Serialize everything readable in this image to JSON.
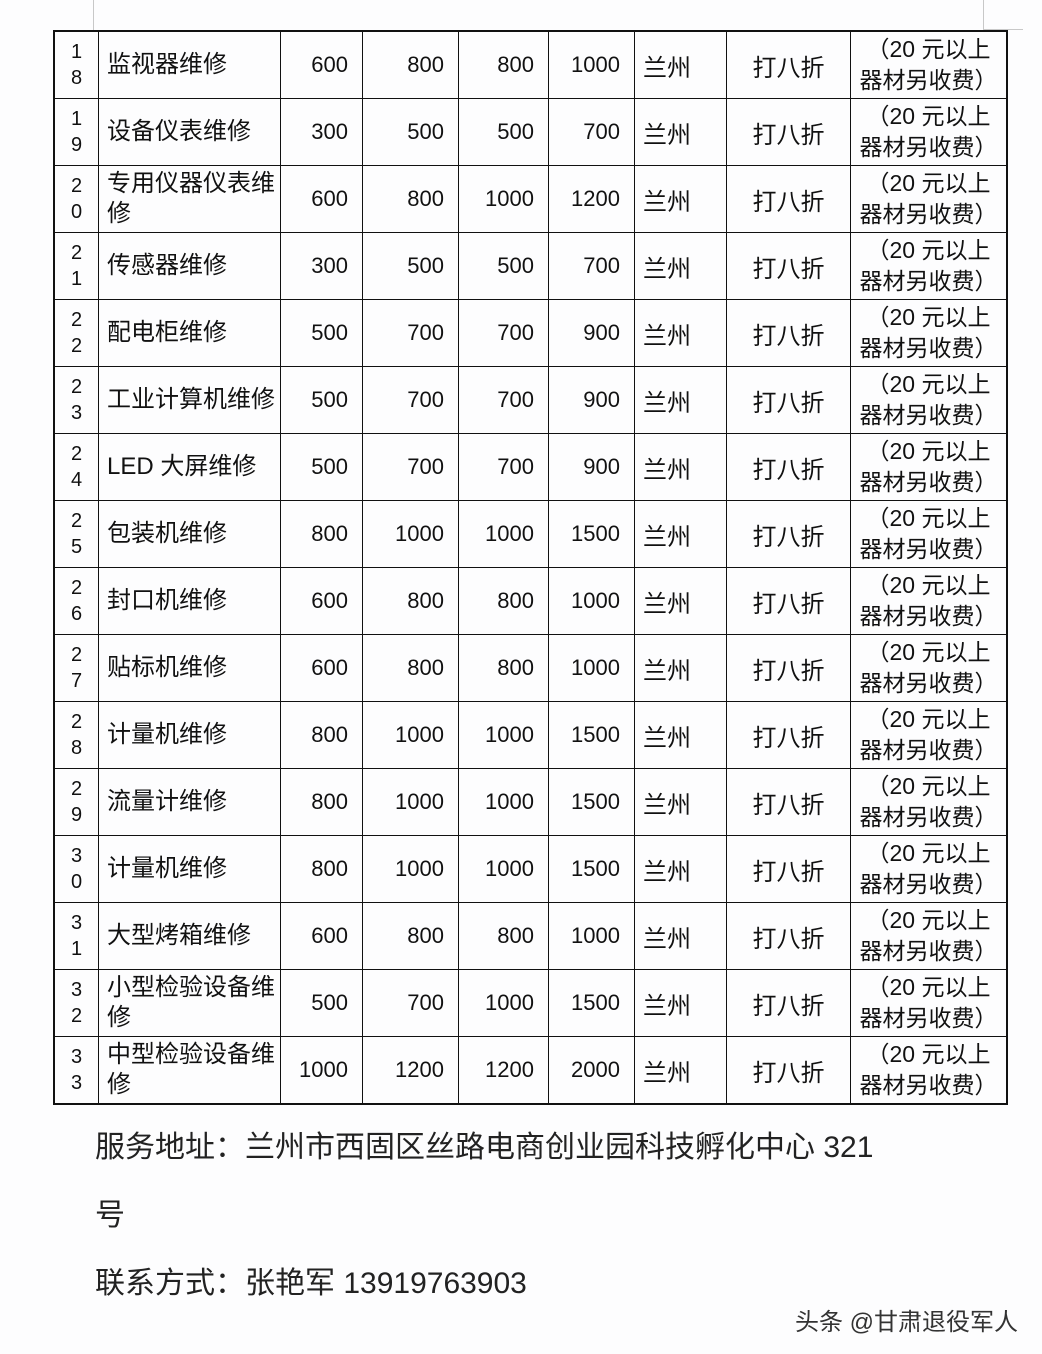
{
  "table": {
    "rows": [
      {
        "no": "1\n8",
        "name": "监视器维修",
        "p1": "600",
        "p2": "800",
        "p3": "800",
        "p4": "1000",
        "city": "兰州",
        "discount": "打八折",
        "note_line1": "（20 元以上",
        "note_line2": "器材另收费）"
      },
      {
        "no": "1\n9",
        "name": "设备仪表维修",
        "p1": "300",
        "p2": "500",
        "p3": "500",
        "p4": "700",
        "city": "兰州",
        "discount": "打八折",
        "note_line1": "（20 元以上",
        "note_line2": "器材另收费）"
      },
      {
        "no": "2\n0",
        "name": "专用仪器仪表维修",
        "p1": "600",
        "p2": "800",
        "p3": "1000",
        "p4": "1200",
        "city": "兰州",
        "discount": "打八折",
        "note_line1": "（20 元以上",
        "note_line2": "器材另收费）"
      },
      {
        "no": "2\n1",
        "name": "传感器维修",
        "p1": "300",
        "p2": "500",
        "p3": "500",
        "p4": "700",
        "city": "兰州",
        "discount": "打八折",
        "note_line1": "（20 元以上",
        "note_line2": "器材另收费）"
      },
      {
        "no": "2\n2",
        "name": "配电柜维修",
        "p1": "500",
        "p2": "700",
        "p3": "700",
        "p4": "900",
        "city": "兰州",
        "discount": "打八折",
        "note_line1": "（20 元以上",
        "note_line2": "器材另收费）"
      },
      {
        "no": "2\n3",
        "name": "工业计算机维修",
        "p1": "500",
        "p2": "700",
        "p3": "700",
        "p4": "900",
        "city": "兰州",
        "discount": "打八折",
        "note_line1": "（20 元以上",
        "note_line2": "器材另收费）"
      },
      {
        "no": "2\n4",
        "name": "LED 大屏维修",
        "p1": "500",
        "p2": "700",
        "p3": "700",
        "p4": "900",
        "city": "兰州",
        "discount": "打八折",
        "note_line1": "（20 元以上",
        "note_line2": "器材另收费）"
      },
      {
        "no": "2\n5",
        "name": "包装机维修",
        "p1": "800",
        "p2": "1000",
        "p3": "1000",
        "p4": "1500",
        "city": "兰州",
        "discount": "打八折",
        "note_line1": "（20 元以上",
        "note_line2": "器材另收费）"
      },
      {
        "no": "2\n6",
        "name": "封口机维修",
        "p1": "600",
        "p2": "800",
        "p3": "800",
        "p4": "1000",
        "city": "兰州",
        "discount": "打八折",
        "note_line1": "（20 元以上",
        "note_line2": "器材另收费）"
      },
      {
        "no": "2\n7",
        "name": "贴标机维修",
        "p1": "600",
        "p2": "800",
        "p3": "800",
        "p4": "1000",
        "city": "兰州",
        "discount": "打八折",
        "note_line1": "（20 元以上",
        "note_line2": "器材另收费）"
      },
      {
        "no": "2\n8",
        "name": "计量机维修",
        "p1": "800",
        "p2": "1000",
        "p3": "1000",
        "p4": "1500",
        "city": "兰州",
        "discount": "打八折",
        "note_line1": "（20 元以上",
        "note_line2": "器材另收费）"
      },
      {
        "no": "2\n9",
        "name": "流量计维修",
        "p1": "800",
        "p2": "1000",
        "p3": "1000",
        "p4": "1500",
        "city": "兰州",
        "discount": "打八折",
        "note_line1": "（20 元以上",
        "note_line2": "器材另收费）"
      },
      {
        "no": "3\n0",
        "name": "计量机维修",
        "p1": "800",
        "p2": "1000",
        "p3": "1000",
        "p4": "1500",
        "city": "兰州",
        "discount": "打八折",
        "note_line1": "（20 元以上",
        "note_line2": "器材另收费）"
      },
      {
        "no": "3\n1",
        "name": "大型烤箱维修",
        "p1": "600",
        "p2": "800",
        "p3": "800",
        "p4": "1000",
        "city": "兰州",
        "discount": "打八折",
        "note_line1": "（20 元以上",
        "note_line2": "器材另收费）"
      },
      {
        "no": "3\n2",
        "name": "小型检验设备维修",
        "p1": "500",
        "p2": "700",
        "p3": "1000",
        "p4": "1500",
        "city": "兰州",
        "discount": "打八折",
        "note_line1": "（20 元以上",
        "note_line2": "器材另收费）"
      },
      {
        "no": "3\n3",
        "name": "中型检验设备维修",
        "p1": "1000",
        "p2": "1200",
        "p3": "1200",
        "p4": "2000",
        "city": "兰州",
        "discount": "打八折",
        "note_line1": "（20 元以上",
        "note_line2": "器材另收费）"
      }
    ]
  },
  "footer": {
    "address_line1": "服务地址：兰州市西固区丝路电商创业园科技孵化中心 321",
    "address_line2": "号",
    "contact": "联系方式：张艳军 13919763903"
  },
  "watermark": "头条 @甘肃退役军人"
}
